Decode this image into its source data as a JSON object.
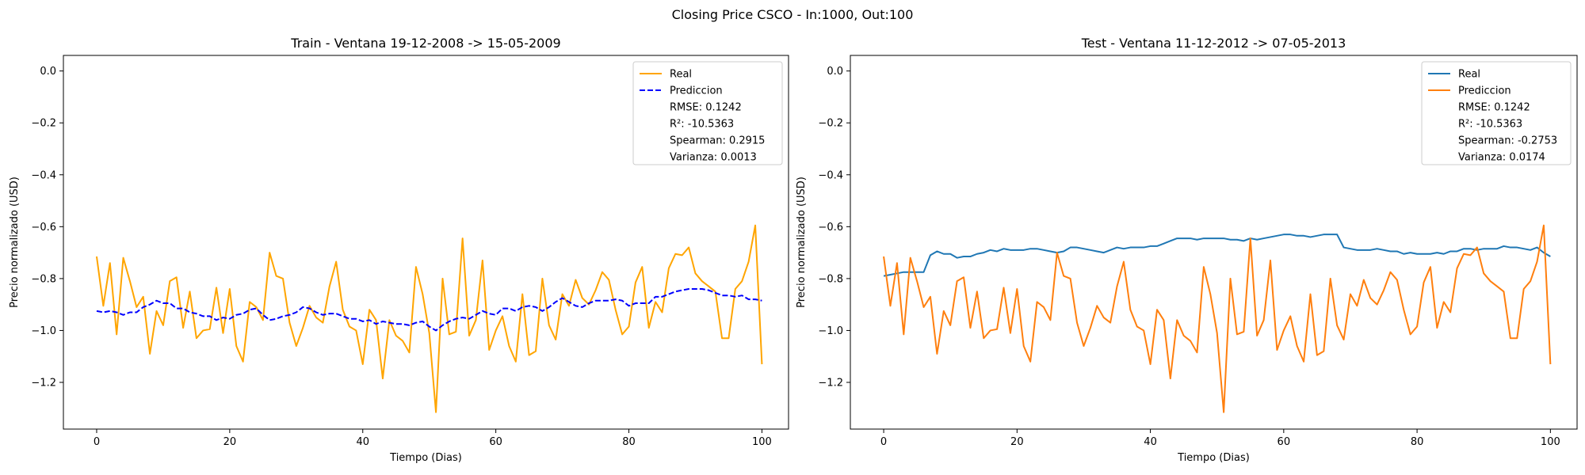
{
  "figure": {
    "suptitle": "Closing Price CSCO - In:1000, Out:100"
  },
  "chart_data": [
    {
      "type": "line",
      "title": "Train - Ventana 19-12-2008 -> 15-05-2009",
      "xlabel": "Tiempo (Dias)",
      "ylabel": "Precio normalizado (USD)",
      "xlim": [
        -5,
        104
      ],
      "ylim": [
        -1.38,
        0.06
      ],
      "xticks": [
        0,
        20,
        40,
        60,
        80,
        100
      ],
      "xtick_labels": [
        "0",
        "20",
        "40",
        "60",
        "80",
        "100"
      ],
      "yticks": [
        0.0,
        -0.2,
        -0.4,
        -0.6,
        -0.8,
        -1.0,
        -1.2
      ],
      "ytick_labels": [
        "0.0",
        "−0.2",
        "−0.4",
        "−0.6",
        "−0.8",
        "−1.0",
        "−1.2"
      ],
      "legend_position": "top-right",
      "legend_stats": [
        "RMSE: 0.1242",
        "R²: -10.5363",
        "Spearman: 0.2915",
        "Varianza: 0.0013"
      ],
      "series": [
        {
          "name": "Real",
          "color": "#FFA500",
          "style": "solid",
          "values": [
            -0.715,
            -0.905,
            -0.74,
            -1.015,
            -0.72,
            -0.81,
            -0.91,
            -0.87,
            -1.09,
            -0.925,
            -0.98,
            -0.81,
            -0.795,
            -0.99,
            -0.85,
            -1.03,
            -1.0,
            -0.995,
            -0.835,
            -1.01,
            -0.84,
            -1.06,
            -1.12,
            -0.89,
            -0.91,
            -0.96,
            -0.7,
            -0.79,
            -0.8,
            -0.97,
            -1.06,
            -0.99,
            -0.905,
            -0.95,
            -0.97,
            -0.83,
            -0.735,
            -0.92,
            -0.985,
            -1.0,
            -1.13,
            -0.92,
            -0.96,
            -1.185,
            -0.96,
            -1.02,
            -1.04,
            -1.085,
            -0.755,
            -0.86,
            -1.01,
            -1.315,
            -0.8,
            -1.015,
            -1.005,
            -0.645,
            -1.02,
            -0.96,
            -0.73,
            -1.075,
            -1.0,
            -0.945,
            -1.06,
            -1.12,
            -0.86,
            -1.095,
            -1.08,
            -0.8,
            -0.98,
            -1.035,
            -0.86,
            -0.905,
            -0.805,
            -0.875,
            -0.9,
            -0.845,
            -0.775,
            -0.805,
            -0.92,
            -1.015,
            -0.985,
            -0.815,
            -0.755,
            -0.99,
            -0.89,
            -0.93,
            -0.76,
            -0.705,
            -0.71,
            -0.68,
            -0.78,
            -0.81,
            -0.83,
            -0.85,
            -1.03,
            -1.03,
            -0.84,
            -0.81,
            -0.735,
            -0.595,
            -1.13
          ]
        },
        {
          "name": "Prediccion",
          "color": "#0000FF",
          "style": "dashed",
          "values": [
            -0.925,
            -0.93,
            -0.925,
            -0.93,
            -0.94,
            -0.93,
            -0.93,
            -0.91,
            -0.9,
            -0.885,
            -0.895,
            -0.895,
            -0.915,
            -0.915,
            -0.93,
            -0.935,
            -0.945,
            -0.945,
            -0.96,
            -0.95,
            -0.955,
            -0.94,
            -0.935,
            -0.92,
            -0.915,
            -0.94,
            -0.96,
            -0.955,
            -0.945,
            -0.94,
            -0.93,
            -0.91,
            -0.915,
            -0.93,
            -0.94,
            -0.935,
            -0.935,
            -0.945,
            -0.955,
            -0.955,
            -0.965,
            -0.96,
            -0.975,
            -0.965,
            -0.97,
            -0.975,
            -0.975,
            -0.98,
            -0.97,
            -0.965,
            -0.985,
            -1.0,
            -0.98,
            -0.965,
            -0.955,
            -0.95,
            -0.955,
            -0.94,
            -0.925,
            -0.935,
            -0.94,
            -0.915,
            -0.915,
            -0.925,
            -0.91,
            -0.905,
            -0.91,
            -0.925,
            -0.91,
            -0.89,
            -0.875,
            -0.89,
            -0.905,
            -0.91,
            -0.895,
            -0.885,
            -0.885,
            -0.885,
            -0.88,
            -0.885,
            -0.905,
            -0.895,
            -0.895,
            -0.895,
            -0.87,
            -0.87,
            -0.86,
            -0.85,
            -0.845,
            -0.84,
            -0.84,
            -0.84,
            -0.845,
            -0.855,
            -0.865,
            -0.865,
            -0.87,
            -0.865,
            -0.88,
            -0.88,
            -0.885
          ]
        }
      ]
    },
    {
      "type": "line",
      "title": "Test - Ventana 11-12-2012 -> 07-05-2013",
      "xlabel": "Tiempo (Dias)",
      "ylabel": "Precio normalizado (USD)",
      "xlim": [
        -5,
        104
      ],
      "ylim": [
        -1.38,
        0.06
      ],
      "xticks": [
        0,
        20,
        40,
        60,
        80,
        100
      ],
      "xtick_labels": [
        "0",
        "20",
        "40",
        "60",
        "80",
        "100"
      ],
      "yticks": [
        0.0,
        -0.2,
        -0.4,
        -0.6,
        -0.8,
        -1.0,
        -1.2
      ],
      "ytick_labels": [
        "0.0",
        "−0.2",
        "−0.4",
        "−0.6",
        "−0.8",
        "−1.0",
        "−1.2"
      ],
      "legend_position": "top-right",
      "legend_stats": [
        "RMSE: 0.1242",
        "R²: -10.5363",
        "Spearman: -0.2753",
        "Varianza: 0.0174"
      ],
      "series": [
        {
          "name": "Real",
          "color": "#1F77B4",
          "style": "solid",
          "values": [
            -0.79,
            -0.785,
            -0.78,
            -0.775,
            -0.775,
            -0.775,
            -0.775,
            -0.71,
            -0.695,
            -0.705,
            -0.705,
            -0.72,
            -0.715,
            -0.715,
            -0.705,
            -0.7,
            -0.69,
            -0.695,
            -0.685,
            -0.69,
            -0.69,
            -0.69,
            -0.685,
            -0.685,
            -0.69,
            -0.695,
            -0.7,
            -0.695,
            -0.68,
            -0.68,
            -0.685,
            -0.69,
            -0.695,
            -0.7,
            -0.69,
            -0.68,
            -0.685,
            -0.68,
            -0.68,
            -0.68,
            -0.675,
            -0.675,
            -0.665,
            -0.655,
            -0.645,
            -0.645,
            -0.645,
            -0.65,
            -0.645,
            -0.645,
            -0.645,
            -0.645,
            -0.65,
            -0.65,
            -0.655,
            -0.645,
            -0.65,
            -0.645,
            -0.64,
            -0.635,
            -0.63,
            -0.63,
            -0.635,
            -0.635,
            -0.64,
            -0.635,
            -0.63,
            -0.63,
            -0.63,
            -0.68,
            -0.685,
            -0.69,
            -0.69,
            -0.69,
            -0.685,
            -0.69,
            -0.695,
            -0.695,
            -0.705,
            -0.7,
            -0.705,
            -0.705,
            -0.705,
            -0.7,
            -0.705,
            -0.695,
            -0.695,
            -0.685,
            -0.685,
            -0.69,
            -0.685,
            -0.685,
            -0.685,
            -0.675,
            -0.68,
            -0.68,
            -0.685,
            -0.69,
            -0.68,
            -0.7,
            -0.715
          ]
        },
        {
          "name": "Prediccion",
          "color": "#FF7F0E",
          "style": "solid",
          "values": [
            -0.715,
            -0.905,
            -0.74,
            -1.015,
            -0.72,
            -0.81,
            -0.91,
            -0.87,
            -1.09,
            -0.925,
            -0.98,
            -0.81,
            -0.795,
            -0.99,
            -0.85,
            -1.03,
            -1.0,
            -0.995,
            -0.835,
            -1.01,
            -0.84,
            -1.06,
            -1.12,
            -0.89,
            -0.91,
            -0.96,
            -0.7,
            -0.79,
            -0.8,
            -0.97,
            -1.06,
            -0.99,
            -0.905,
            -0.95,
            -0.97,
            -0.83,
            -0.735,
            -0.92,
            -0.985,
            -1.0,
            -1.13,
            -0.92,
            -0.96,
            -1.185,
            -0.96,
            -1.02,
            -1.04,
            -1.085,
            -0.755,
            -0.86,
            -1.01,
            -1.315,
            -0.8,
            -1.015,
            -1.005,
            -0.645,
            -1.02,
            -0.96,
            -0.73,
            -1.075,
            -1.0,
            -0.945,
            -1.06,
            -1.12,
            -0.86,
            -1.095,
            -1.08,
            -0.8,
            -0.98,
            -1.035,
            -0.86,
            -0.905,
            -0.805,
            -0.875,
            -0.9,
            -0.845,
            -0.775,
            -0.805,
            -0.92,
            -1.015,
            -0.985,
            -0.815,
            -0.755,
            -0.99,
            -0.89,
            -0.93,
            -0.76,
            -0.705,
            -0.71,
            -0.68,
            -0.78,
            -0.81,
            -0.83,
            -0.85,
            -1.03,
            -1.03,
            -0.84,
            -0.81,
            -0.735,
            -0.595,
            -1.13
          ]
        }
      ]
    }
  ]
}
